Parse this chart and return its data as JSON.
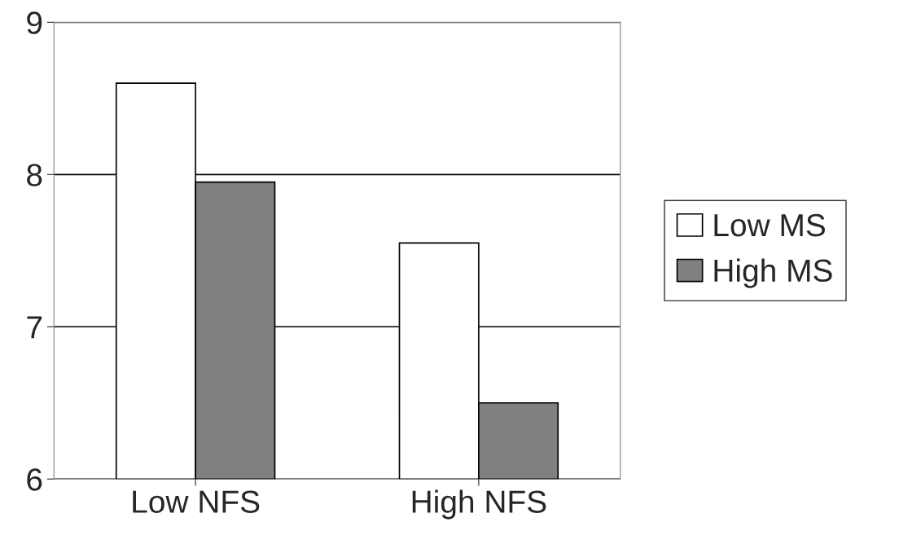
{
  "chart_data": {
    "type": "bar",
    "categories": [
      "Low NFS",
      "High NFS"
    ],
    "series": [
      {
        "name": "Low MS",
        "color": "#ffffff",
        "values": [
          8.6,
          7.55
        ]
      },
      {
        "name": "High MS",
        "color": "#808080",
        "values": [
          7.95,
          6.5
        ]
      }
    ],
    "ylim": [
      6,
      9
    ],
    "yticks": [
      6,
      7,
      8,
      9
    ],
    "grid": "y",
    "legend": "right"
  }
}
